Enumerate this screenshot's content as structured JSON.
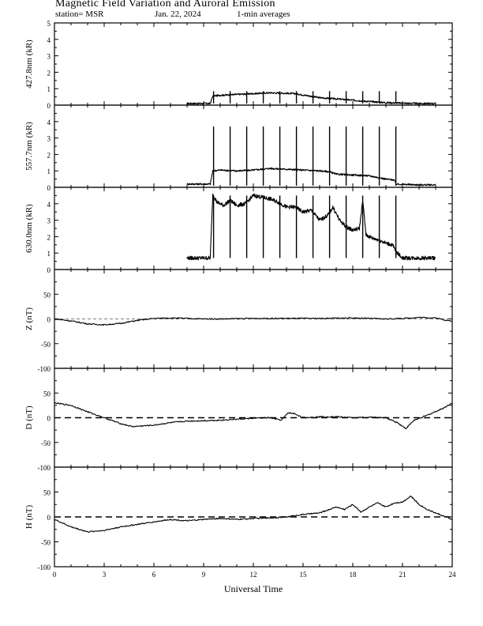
{
  "header": {
    "title": "Magnetic Field Variation and Auroral Emission",
    "station": "station= MSR",
    "date": "Jan. 22, 2024",
    "averaging": "1-min averages"
  },
  "chart_data": {
    "type": "line",
    "xlabel": "Universal Time",
    "xlim": [
      0,
      24
    ],
    "xticks": [
      0,
      3,
      6,
      9,
      12,
      15,
      18,
      21,
      24
    ],
    "panels": [
      {
        "id": "427",
        "ylabel": "427.8nm (kR)",
        "ylim": [
          0,
          5
        ],
        "yticks": [
          0,
          1,
          2,
          3,
          4,
          5
        ],
        "series": [
          {
            "x": [
              8.0,
              9.4,
              9.55,
              10.0,
              11.0,
              12.0,
              13.0,
              14.0,
              14.5,
              15.0,
              16.0,
              17.0,
              18.0,
              19.0,
              20.0,
              21.0,
              22.0,
              23.0
            ],
            "y": [
              0.1,
              0.1,
              0.55,
              0.6,
              0.65,
              0.7,
              0.75,
              0.72,
              0.7,
              0.62,
              0.45,
              0.38,
              0.3,
              0.22,
              0.15,
              0.12,
              0.1,
              0.1
            ]
          }
        ],
        "spikes": [
          9.6,
          10.6,
          11.6,
          12.6,
          13.6,
          14.6,
          15.6,
          16.6,
          17.6,
          18.6,
          19.6,
          20.6
        ],
        "spike_top": 0.85,
        "zero_line": "none"
      },
      {
        "id": "557",
        "ylabel": "557.7nm (kR)",
        "ylim": [
          0,
          5
        ],
        "yticks": [
          0,
          1,
          2,
          3,
          4
        ],
        "series": [
          {
            "x": [
              8.0,
              9.4,
              9.55,
              10.0,
              11.0,
              12.0,
              13.0,
              14.0,
              15.0,
              16.0,
              16.6,
              17.0,
              18.0,
              19.0,
              20.0,
              20.5,
              20.6,
              21.0,
              22.0,
              23.0
            ],
            "y": [
              0.2,
              0.2,
              1.0,
              1.05,
              1.0,
              1.05,
              1.15,
              1.1,
              1.05,
              1.0,
              0.95,
              0.8,
              0.75,
              0.7,
              0.5,
              0.45,
              0.2,
              0.18,
              0.15,
              0.15
            ]
          }
        ],
        "spikes": [
          9.6,
          10.6,
          11.6,
          12.6,
          13.6,
          14.6,
          15.6,
          16.6,
          17.6,
          18.6,
          19.6,
          20.6
        ],
        "spike_top": 3.7,
        "zero_line": "none"
      },
      {
        "id": "630",
        "ylabel": "630.0nm (kR)",
        "ylim": [
          0,
          5
        ],
        "yticks": [
          0,
          1,
          2,
          3,
          4
        ],
        "series": [
          {
            "x": [
              8.0,
              9.4,
              9.55,
              9.8,
              10.2,
              10.6,
              11.0,
              11.5,
              12.0,
              12.5,
              13.0,
              13.5,
              14.0,
              14.5,
              15.0,
              15.5,
              16.0,
              16.5,
              16.8,
              17.2,
              17.6,
              18.0,
              18.4,
              18.6,
              18.8,
              19.2,
              19.6,
              20.0,
              20.4,
              20.6,
              21.0,
              22.0,
              23.0
            ],
            "y": [
              0.7,
              0.7,
              4.6,
              4.1,
              3.9,
              4.2,
              3.9,
              4.0,
              4.5,
              4.4,
              4.3,
              4.1,
              3.8,
              3.8,
              3.5,
              3.6,
              3.0,
              3.3,
              3.8,
              3.0,
              2.6,
              2.4,
              2.5,
              4.2,
              2.1,
              1.9,
              1.8,
              1.6,
              1.5,
              1.1,
              0.7,
              0.7,
              0.7
            ]
          }
        ],
        "spikes": [
          9.6,
          10.6,
          11.6,
          12.6,
          13.6,
          14.6,
          15.6,
          16.6,
          17.6,
          18.6,
          19.6,
          20.6
        ],
        "spike_top": 4.5,
        "spike_base": 0.7,
        "zero_line": "none"
      },
      {
        "id": "Z",
        "ylabel": "Z (nT)",
        "ylim": [
          -100,
          100
        ],
        "yticks": [
          -100,
          -50,
          0,
          50
        ],
        "series": [
          {
            "x": [
              0,
              1,
              2,
              3,
              4,
              5,
              6,
              7,
              8,
              9,
              10,
              12,
              14,
              16,
              18,
              19,
              20,
              21,
              22,
              23,
              24
            ],
            "y": [
              0,
              -4,
              -10,
              -12,
              -9,
              -3,
              1,
              2,
              1,
              0,
              0,
              1,
              1,
              1,
              2,
              1,
              0,
              1,
              3,
              2,
              -5
            ]
          }
        ],
        "zero_line": "dashed-thin"
      },
      {
        "id": "D",
        "ylabel": "D (nT)",
        "ylim": [
          -100,
          100
        ],
        "yticks": [
          -100,
          -50,
          0,
          50
        ],
        "series": [
          {
            "x": [
              0,
              1,
              2,
              3,
              4,
              4.7,
              6,
              7,
              8,
              9,
              10,
              11,
              12,
              13,
              13.7,
              14.1,
              14.5,
              15,
              16,
              17,
              18,
              19,
              20,
              20.7,
              21.2,
              21.7,
              22.5,
              23.5,
              24
            ],
            "y": [
              30,
              25,
              12,
              0,
              -12,
              -18,
              -15,
              -10,
              -7,
              -6,
              -5,
              -3,
              -1,
              0,
              -5,
              10,
              8,
              0,
              2,
              2,
              0,
              1,
              0,
              -10,
              -22,
              -5,
              5,
              20,
              30
            ]
          }
        ],
        "zero_line": "dashed-thick"
      },
      {
        "id": "H",
        "ylabel": "H (nT)",
        "ylim": [
          -100,
          100
        ],
        "yticks": [
          -100,
          -50,
          0,
          50
        ],
        "series": [
          {
            "x": [
              0,
              1,
              2,
              3,
              4,
              5,
              6,
              7,
              8,
              9,
              10,
              11,
              12,
              13,
              14,
              15,
              16,
              17,
              17.5,
              18,
              18.5,
              19,
              19.5,
              20,
              20.5,
              21,
              21.5,
              22,
              22.5,
              23,
              24
            ],
            "y": [
              -5,
              -20,
              -30,
              -27,
              -20,
              -15,
              -10,
              -5,
              -8,
              -5,
              -3,
              -5,
              -3,
              -2,
              0,
              5,
              8,
              20,
              15,
              25,
              10,
              20,
              28,
              20,
              28,
              30,
              42,
              25,
              15,
              8,
              -5
            ]
          }
        ],
        "zero_line": "dashed-thick"
      }
    ]
  }
}
